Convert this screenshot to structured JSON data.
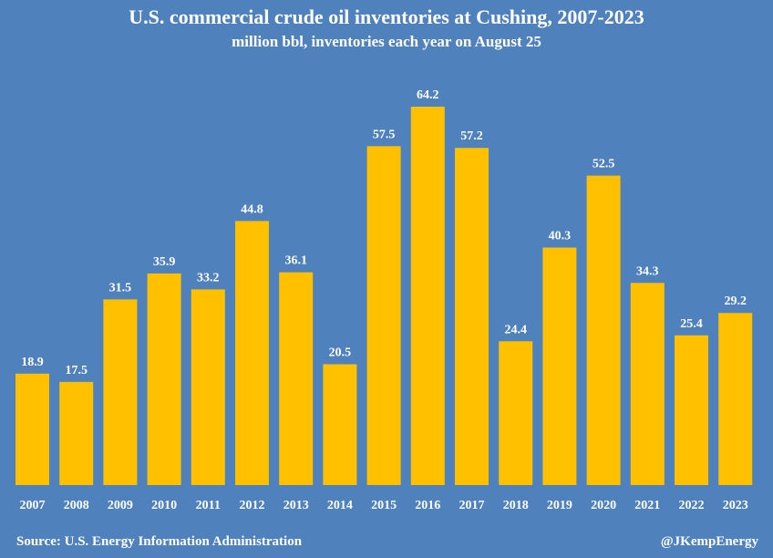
{
  "chart_data": {
    "type": "bar",
    "title": "U.S. commercial crude oil inventories at Cushing, 2007-2023",
    "subtitle": "million bbl, inventories each year on August 25",
    "categories": [
      "2007",
      "2008",
      "2009",
      "2010",
      "2011",
      "2012",
      "2013",
      "2014",
      "2015",
      "2016",
      "2017",
      "2018",
      "2019",
      "2020",
      "2021",
      "2022",
      "2023"
    ],
    "values": [
      18.9,
      17.5,
      31.5,
      35.9,
      33.2,
      44.8,
      36.1,
      20.5,
      57.5,
      64.2,
      57.2,
      24.4,
      40.3,
      52.5,
      34.3,
      25.4,
      29.2
    ],
    "data_labels": [
      "18.9",
      "17.5",
      "31.5",
      "35.9",
      "33.2",
      "44.8",
      "36.1",
      "20.5",
      "57.5",
      "64.2",
      "57.2",
      "24.4",
      "40.3",
      "52.5",
      "34.3",
      "25.4",
      "29.2"
    ],
    "ylim": [
      0,
      64.2
    ],
    "grid": false,
    "legend": "none",
    "colors": {
      "background": "#4f81bd",
      "bar": "#ffc000",
      "text": "#ffffff"
    }
  },
  "footer": {
    "source": "Source: U.S. Energy Information Administration",
    "credit": "@JKempEnergy"
  }
}
